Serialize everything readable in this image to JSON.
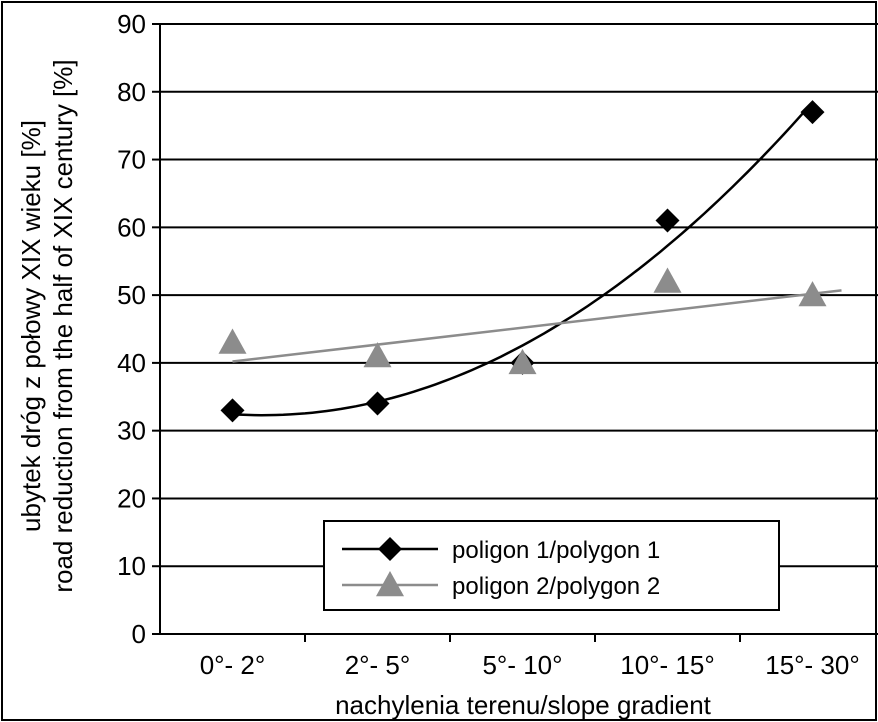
{
  "chart_data": {
    "type": "line",
    "xlabel": "nachylenia terenu/slope gradient",
    "ylabel_line1": "ubytek dróg z połowy XIX wieku [%]",
    "ylabel_line2": "road reduction from the half of XIX century [%]",
    "categories": [
      "0°- 2°",
      "2°- 5°",
      "5°- 10°",
      "10°- 15°",
      "15°- 30°"
    ],
    "ylim": [
      0,
      90
    ],
    "yticks": [
      "0",
      "10",
      "20",
      "30",
      "40",
      "50",
      "60",
      "70",
      "80",
      "90"
    ],
    "grid": true,
    "legend_position": "bottom-center",
    "series": [
      {
        "name": "poligon 1/polygon 1",
        "marker": "diamond",
        "color": "#000000",
        "values": [
          33,
          34,
          40,
          61,
          77
        ],
        "trendline": "polynomial"
      },
      {
        "name": "poligon 2/polygon 2",
        "marker": "triangle",
        "color": "#8c8c8c",
        "values": [
          43,
          41,
          40,
          52,
          50
        ],
        "trendline": "linear"
      }
    ]
  }
}
